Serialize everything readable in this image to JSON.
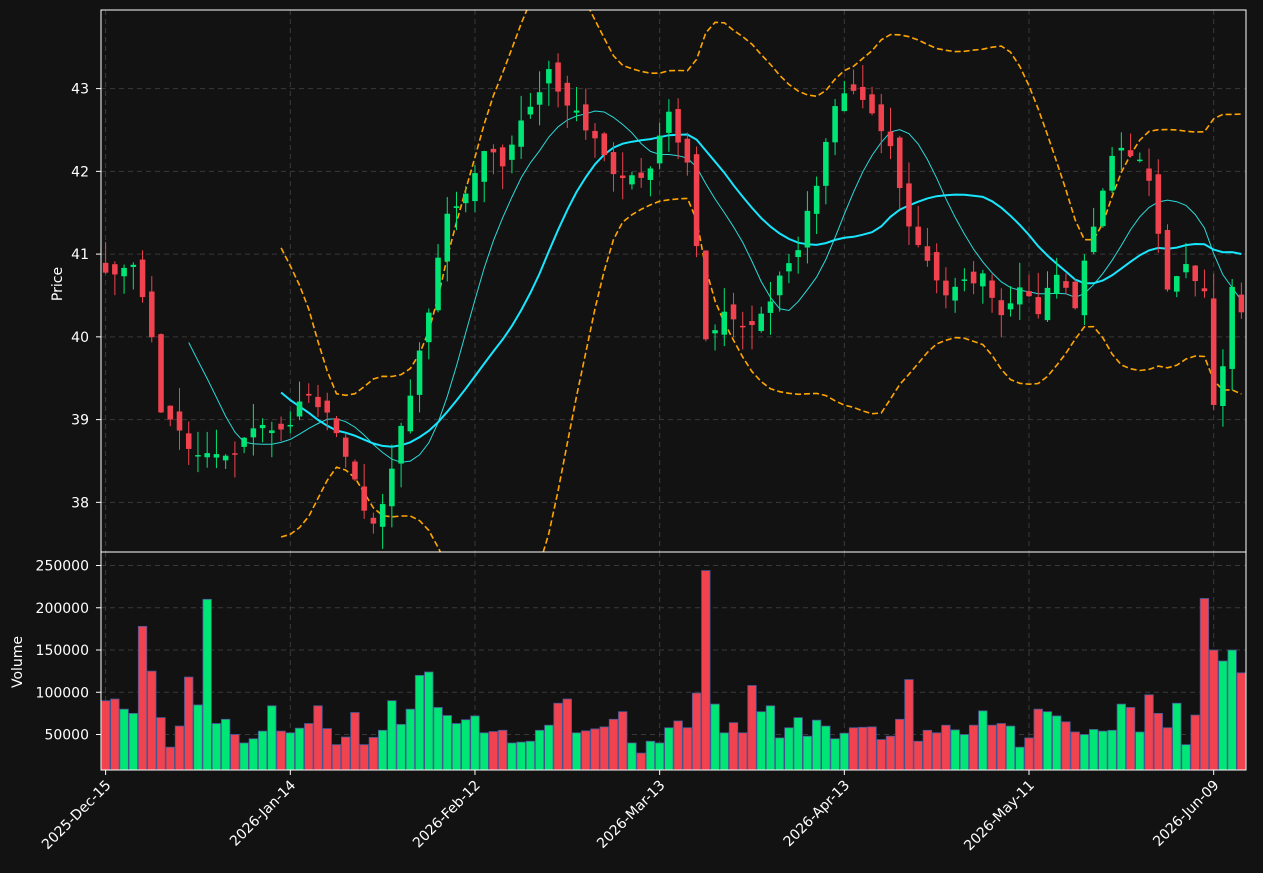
{
  "chart_data": {
    "type": "candlestick",
    "price_panel": {
      "ylabel": "Price",
      "ylim": [
        37.4,
        43.95
      ],
      "yticks": [
        38,
        39,
        40,
        41,
        42,
        43
      ],
      "moving_average_short_color": "#2bd9d9",
      "moving_average_long_color": "#18e6ff",
      "bollinger_color": "#ffa500",
      "up_color": "#00e676",
      "down_color": "#f0424f"
    },
    "volume_panel": {
      "ylabel": "Volume",
      "ylim": [
        8000,
        266000
      ],
      "yticks": [
        50000,
        100000,
        150000,
        200000,
        250000
      ],
      "tick_labels": [
        "50000",
        "100000",
        "150000",
        "200000",
        "250000"
      ],
      "edge_color": "#4a5a9a"
    },
    "x_count": 124,
    "x_tick_labels": [
      {
        "index": 0,
        "label": "2025-Dec-15"
      },
      {
        "index": 20,
        "label": "2026-Jan-14"
      },
      {
        "index": 40,
        "label": "2026-Feb-12"
      },
      {
        "index": 60,
        "label": "2026-Mar-13"
      },
      {
        "index": 80,
        "label": "2026-Apr-13"
      },
      {
        "index": 100,
        "label": "2026-May-11"
      },
      {
        "index": 120,
        "label": "2026-Jun-09"
      }
    ],
    "grid": true,
    "anchors": {
      "close": [
        [
          0,
          40.75
        ],
        [
          3,
          40.9
        ],
        [
          5,
          39.95
        ],
        [
          6,
          39.05
        ],
        [
          8,
          38.8
        ],
        [
          10,
          38.65
        ],
        [
          12,
          38.6
        ],
        [
          14,
          38.5
        ],
        [
          15,
          38.8
        ],
        [
          18,
          38.9
        ],
        [
          20,
          38.95
        ],
        [
          22,
          39.35
        ],
        [
          24,
          39.05
        ],
        [
          26,
          38.5
        ],
        [
          29,
          37.7
        ],
        [
          31,
          38.4
        ],
        [
          33,
          39.35
        ],
        [
          35,
          40.35
        ],
        [
          37,
          41.5
        ],
        [
          39,
          41.8
        ],
        [
          41,
          42.3
        ],
        [
          43,
          42.1
        ],
        [
          45,
          42.6
        ],
        [
          48,
          43.2
        ],
        [
          50,
          42.85
        ],
        [
          52,
          42.5
        ],
        [
          55,
          42.0
        ],
        [
          57,
          41.9
        ],
        [
          59,
          42.0
        ],
        [
          61,
          42.75
        ],
        [
          63,
          42.1
        ],
        [
          65,
          40.0
        ],
        [
          67,
          40.25
        ],
        [
          70,
          40.15
        ],
        [
          72,
          40.5
        ],
        [
          75,
          41.05
        ],
        [
          77,
          41.9
        ],
        [
          79,
          42.85
        ],
        [
          81,
          42.9
        ],
        [
          83,
          42.75
        ],
        [
          85,
          42.3
        ],
        [
          87,
          41.3
        ],
        [
          89,
          40.85
        ],
        [
          91,
          40.45
        ],
        [
          93,
          40.65
        ],
        [
          95,
          40.7
        ],
        [
          97,
          40.3
        ],
        [
          99,
          40.6
        ],
        [
          101,
          40.3
        ],
        [
          103,
          40.75
        ],
        [
          105,
          40.4
        ],
        [
          107,
          41.4
        ],
        [
          109,
          42.25
        ],
        [
          111,
          42.2
        ],
        [
          113,
          41.95
        ],
        [
          115,
          40.6
        ],
        [
          117,
          40.8
        ],
        [
          119,
          40.6
        ],
        [
          120,
          39.15
        ],
        [
          121,
          39.65
        ],
        [
          122,
          40.65
        ],
        [
          123,
          40.25
        ]
      ],
      "volume": [
        [
          0,
          90000
        ],
        [
          1,
          92000
        ],
        [
          2,
          80000
        ],
        [
          3,
          75000
        ],
        [
          4,
          178000
        ],
        [
          5,
          125000
        ],
        [
          6,
          70000
        ],
        [
          7,
          35000
        ],
        [
          8,
          60000
        ],
        [
          9,
          118000
        ],
        [
          10,
          85000
        ],
        [
          11,
          210000
        ],
        [
          12,
          63000
        ],
        [
          13,
          68000
        ],
        [
          14,
          50000
        ],
        [
          15,
          40000
        ],
        [
          16,
          45000
        ],
        [
          17,
          54000
        ],
        [
          18,
          84000
        ],
        [
          19,
          54000
        ],
        [
          20,
          52000
        ],
        [
          22,
          63000
        ],
        [
          23,
          84000
        ],
        [
          24,
          57000
        ],
        [
          25,
          38000
        ],
        [
          26,
          47000
        ],
        [
          27,
          76000
        ],
        [
          28,
          38000
        ],
        [
          30,
          55000
        ],
        [
          31,
          90000
        ],
        [
          32,
          62000
        ],
        [
          33,
          80000
        ],
        [
          34,
          120000
        ],
        [
          35,
          124000
        ],
        [
          36,
          82000
        ],
        [
          38,
          63000
        ],
        [
          40,
          72000
        ],
        [
          41,
          52000
        ],
        [
          43,
          55000
        ],
        [
          44,
          40000
        ],
        [
          46,
          42000
        ],
        [
          47,
          55000
        ],
        [
          48,
          61000
        ],
        [
          49,
          87000
        ],
        [
          50,
          92000
        ],
        [
          51,
          52000
        ],
        [
          54,
          59000
        ],
        [
          56,
          77000
        ],
        [
          57,
          40000
        ],
        [
          58,
          28000
        ],
        [
          59,
          42000
        ],
        [
          60,
          40000
        ],
        [
          61,
          58000
        ],
        [
          62,
          66000
        ],
        [
          63,
          58000
        ],
        [
          64,
          99000
        ],
        [
          65,
          244000
        ],
        [
          66,
          86000
        ],
        [
          67,
          52000
        ],
        [
          68,
          64000
        ],
        [
          69,
          52000
        ],
        [
          70,
          108000
        ],
        [
          71,
          77000
        ],
        [
          72,
          84000
        ],
        [
          73,
          46000
        ],
        [
          75,
          70000
        ],
        [
          76,
          48000
        ],
        [
          77,
          67000
        ],
        [
          78,
          60000
        ],
        [
          79,
          45000
        ],
        [
          81,
          58000
        ],
        [
          83,
          59000
        ],
        [
          84,
          44000
        ],
        [
          85,
          48000
        ],
        [
          86,
          68000
        ],
        [
          87,
          115000
        ],
        [
          88,
          42000
        ],
        [
          89,
          55000
        ],
        [
          90,
          52000
        ],
        [
          91,
          61000
        ],
        [
          93,
          50000
        ],
        [
          94,
          61000
        ],
        [
          95,
          78000
        ],
        [
          96,
          61000
        ],
        [
          97,
          63000
        ],
        [
          98,
          60000
        ],
        [
          99,
          35000
        ],
        [
          100,
          46000
        ],
        [
          101,
          80000
        ],
        [
          102,
          77000
        ],
        [
          103,
          72000
        ],
        [
          104,
          65000
        ],
        [
          105,
          53000
        ],
        [
          106,
          50000
        ],
        [
          107,
          56000
        ],
        [
          108,
          54000
        ],
        [
          109,
          55000
        ],
        [
          110,
          86000
        ],
        [
          111,
          82000
        ],
        [
          112,
          53000
        ],
        [
          113,
          97000
        ],
        [
          114,
          75000
        ],
        [
          115,
          58000
        ],
        [
          116,
          87000
        ],
        [
          117,
          38000
        ],
        [
          118,
          73000
        ],
        [
          119,
          211000
        ],
        [
          120,
          150000
        ],
        [
          121,
          137000
        ],
        [
          122,
          150000
        ],
        [
          123,
          123000
        ]
      ]
    }
  }
}
